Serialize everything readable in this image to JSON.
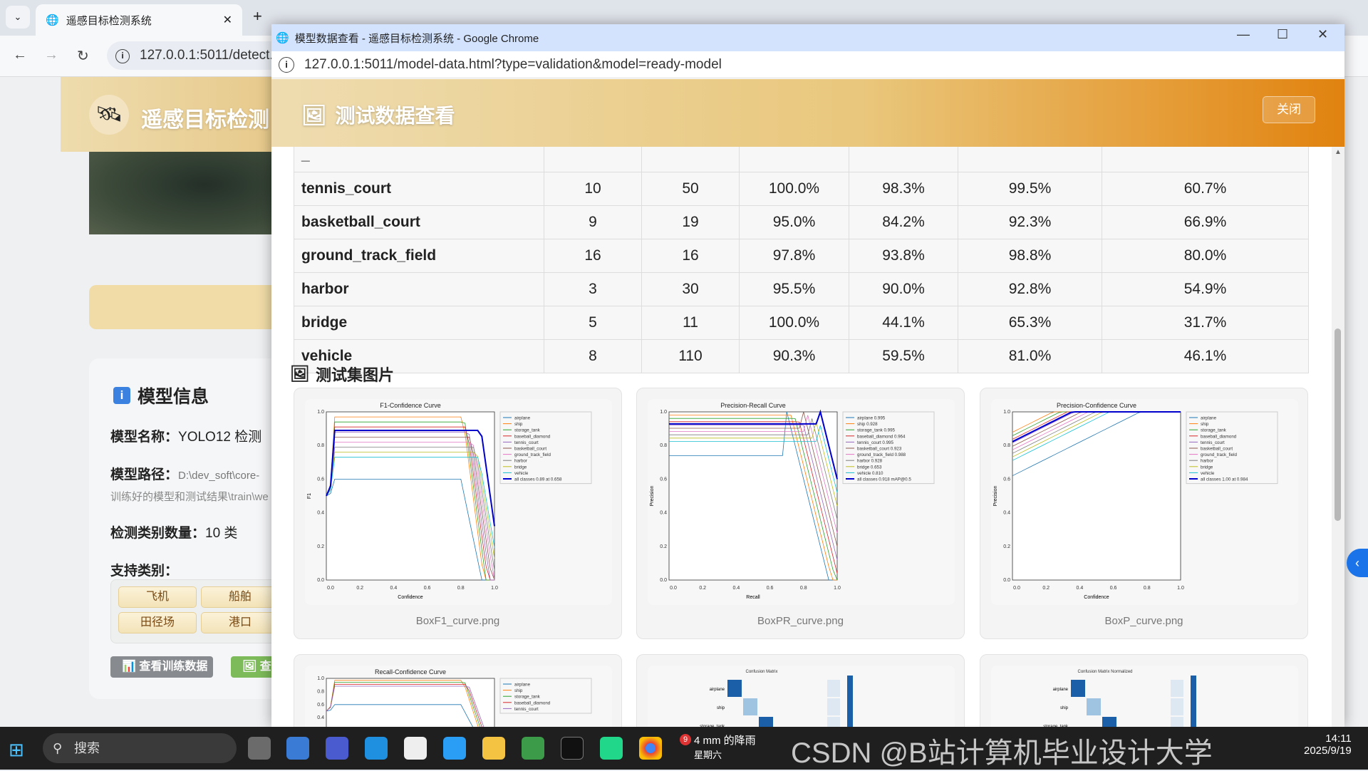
{
  "background_browser": {
    "tab_title": "遥感目标检测系统",
    "url": "127.0.0.1:5011/detect.",
    "app_title": "遥感目标检测",
    "model_info": {
      "title": "模型信息",
      "name_label": "模型名称：",
      "name_value": "YOLO12 检测",
      "path_label": "模型路径：",
      "path_value": "D:\\dev_soft\\core-",
      "path_value2": "训练好的模型和测试结果\\train\\we",
      "class_count_label": "检测类别数量：",
      "class_count_value": "10 类",
      "classes_label": "支持类别：",
      "classes": [
        "飞机",
        "船舶",
        "田径场",
        "港口"
      ],
      "view_training_button": "查看训练数据",
      "view_test_button": "查"
    }
  },
  "popup": {
    "window_title": "模型数据查看 - 遥感目标检测系统 - Google Chrome",
    "url": "127.0.0.1:5011/model-data.html?type=validation&model=ready-model",
    "header_title": "测试数据查看",
    "close_label": "关闭",
    "table_rows": [
      [
        "tennis_court",
        "10",
        "50",
        "100.0%",
        "98.3%",
        "99.5%",
        "60.7%"
      ],
      [
        "basketball_court",
        "9",
        "19",
        "95.0%",
        "84.2%",
        "92.3%",
        "66.9%"
      ],
      [
        "ground_track_field",
        "16",
        "16",
        "97.8%",
        "93.8%",
        "98.8%",
        "80.0%"
      ],
      [
        "harbor",
        "3",
        "30",
        "95.5%",
        "90.0%",
        "92.8%",
        "54.9%"
      ],
      [
        "bridge",
        "5",
        "11",
        "100.0%",
        "44.1%",
        "65.3%",
        "31.7%"
      ],
      [
        "vehicle",
        "8",
        "110",
        "90.3%",
        "59.5%",
        "81.0%",
        "46.1%"
      ]
    ],
    "section_title": "测试集图片",
    "images": [
      {
        "file": "BoxF1_curve.png",
        "title": "F1-Confidence Curve",
        "xlabel": "Confidence",
        "ylabel": "F1",
        "legend": [
          "airplane",
          "ship",
          "storage_tank",
          "baseball_diamond",
          "tennis_court",
          "basketball_court",
          "ground_track_field",
          "harbor",
          "bridge",
          "vehicle",
          "all classes 0.89 at 0.658"
        ]
      },
      {
        "file": "BoxPR_curve.png",
        "title": "Precision-Recall Curve",
        "xlabel": "Recall",
        "ylabel": "Precision",
        "legend": [
          "airplane 0.995",
          "ship 0.928",
          "storage_tank 0.995",
          "baseball_diamond 0.964",
          "tennis_court 0.995",
          "basketball_court 0.923",
          "ground_track_field 0.988",
          "harbor 0.928",
          "bridge 0.653",
          "vehicle 0.810",
          "all classes 0.918 mAP@0.5"
        ]
      },
      {
        "file": "BoxP_curve.png",
        "title": "Precision-Confidence Curve",
        "xlabel": "Confidence",
        "ylabel": "Precision",
        "legend": [
          "airplane",
          "ship",
          "storage_tank",
          "baseball_diamond",
          "tennis_court",
          "basketball_court",
          "ground_track_field",
          "harbor",
          "bridge",
          "vehicle",
          "all classes 1.00 at 0.984"
        ]
      },
      {
        "file": "",
        "title": "Recall-Confidence Curve",
        "xlabel": "",
        "ylabel": "",
        "legend": [
          "airplane",
          "ship",
          "storage_tank",
          "baseball_diamond",
          "tennis_court"
        ]
      },
      {
        "file": "",
        "title": "Confusion Matrix",
        "rows": [
          "airplane",
          "ship",
          "storage_tank"
        ]
      },
      {
        "file": "",
        "title": "Confusion Matrix Normalized",
        "rows": [
          "airplane",
          "ship",
          "storage_tank"
        ]
      }
    ],
    "ticks": [
      "0.0",
      "0.2",
      "0.4",
      "0.6",
      "0.8",
      "1.0"
    ],
    "series_colors": [
      "#1f77b4",
      "#ff7f0e",
      "#2ca02c",
      "#d62728",
      "#9467bd",
      "#8c564b",
      "#e377c2",
      "#7f7f7f",
      "#bcbd22",
      "#17becf",
      "#0000cc"
    ]
  },
  "taskbar": {
    "search_placeholder": "搜索",
    "weather_badge": "9",
    "weather_text": "4 mm 的降雨",
    "weather_day": "星期六",
    "time": "14:11",
    "date": "2025/9/19",
    "watermark": "CSDN @B站计算机毕业设计大学"
  }
}
